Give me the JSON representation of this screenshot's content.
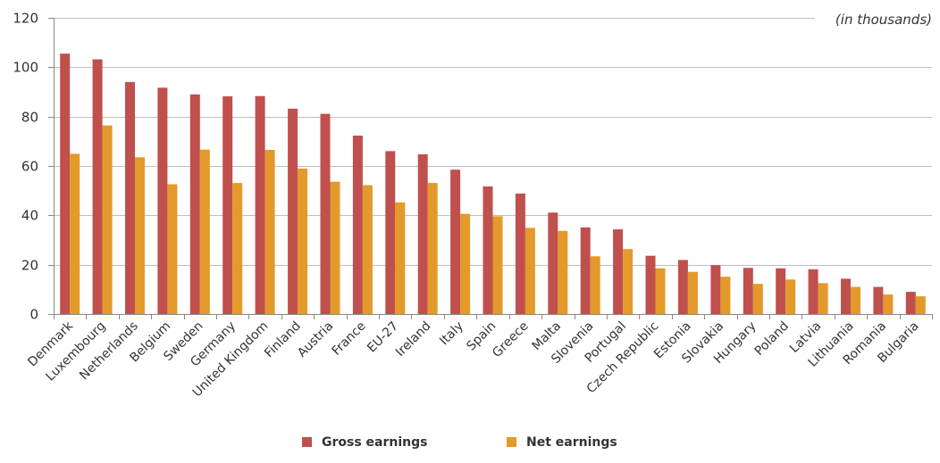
{
  "chart_data": {
    "type": "bar",
    "unit_label": "(in thousands)",
    "ylim": [
      0,
      120
    ],
    "y_ticks": [
      0,
      20,
      40,
      60,
      80,
      100,
      120
    ],
    "grid": true,
    "legend_position": "bottom",
    "categories": [
      "Denmark",
      "Luxembourg",
      "Netherlands",
      "Belgium",
      "Sweden",
      "Germany",
      "United Kingdom",
      "Finland",
      "Austria",
      "France",
      "EU-27",
      "Ireland",
      "Italy",
      "Spain",
      "Greece",
      "Malta",
      "Slovenia",
      "Portugal",
      "Czech Republic",
      "Estonia",
      "Slovakia",
      "Hungary",
      "Poland",
      "Latvia",
      "Lithuania",
      "Romania",
      "Bulgaria"
    ],
    "series": [
      {
        "name": "Gross earnings",
        "color": "#c0504d",
        "values": [
          105.5,
          103.2,
          94.0,
          91.7,
          89.0,
          88.2,
          88.3,
          83.2,
          81.1,
          72.3,
          66.0,
          64.7,
          58.5,
          51.7,
          48.8,
          41.1,
          35.1,
          34.3,
          23.6,
          21.9,
          19.8,
          18.7,
          18.5,
          18.1,
          14.3,
          11.0,
          9.0
        ]
      },
      {
        "name": "Net earnings",
        "color": "#e39a2a",
        "values": [
          64.9,
          76.4,
          63.5,
          52.6,
          66.6,
          53.1,
          66.5,
          58.9,
          53.6,
          52.2,
          45.2,
          53.1,
          40.6,
          39.6,
          34.9,
          33.7,
          23.4,
          26.3,
          18.5,
          17.1,
          15.1,
          12.2,
          14.0,
          12.5,
          11.0,
          7.9,
          7.2
        ]
      }
    ]
  }
}
